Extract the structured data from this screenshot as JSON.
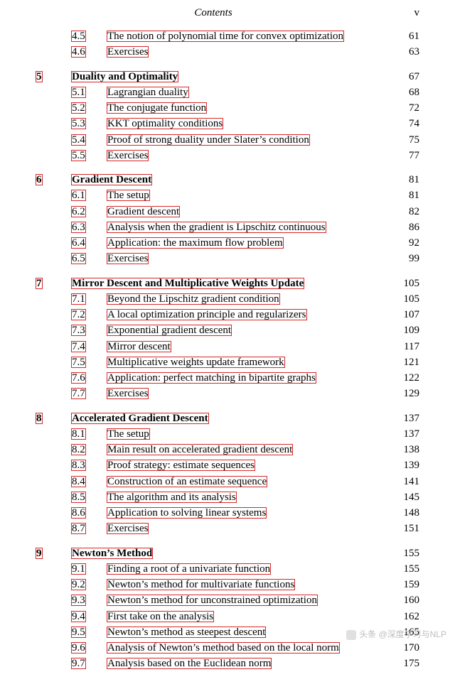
{
  "header": {
    "title": "Contents",
    "pageNumeral": "v"
  },
  "preChapterItems": [
    {
      "num": "4.5",
      "title": "The notion of polynomial time for convex optimization",
      "page": "61"
    },
    {
      "num": "4.6",
      "title": "Exercises",
      "page": "63"
    }
  ],
  "chapters": [
    {
      "num": "5",
      "title": "Duality and Optimality",
      "page": "67",
      "items": [
        {
          "num": "5.1",
          "title": "Lagrangian duality",
          "page": "68"
        },
        {
          "num": "5.2",
          "title": "The conjugate function",
          "page": "72"
        },
        {
          "num": "5.3",
          "title": "KKT optimality conditions",
          "page": "74"
        },
        {
          "num": "5.4",
          "title": "Proof of strong duality under Slater’s condition",
          "page": "75"
        },
        {
          "num": "5.5",
          "title": "Exercises",
          "page": "77"
        }
      ]
    },
    {
      "num": "6",
      "title": "Gradient Descent",
      "page": "81",
      "items": [
        {
          "num": "6.1",
          "title": "The setup",
          "page": "81"
        },
        {
          "num": "6.2",
          "title": "Gradient descent",
          "page": "82"
        },
        {
          "num": "6.3",
          "title": "Analysis when the gradient is Lipschitz continuous",
          "page": "86"
        },
        {
          "num": "6.4",
          "title": "Application: the maximum flow problem",
          "page": "92"
        },
        {
          "num": "6.5",
          "title": "Exercises",
          "page": "99"
        }
      ]
    },
    {
      "num": "7",
      "title": "Mirror Descent and Multiplicative Weights Update",
      "page": "105",
      "items": [
        {
          "num": "7.1",
          "title": "Beyond the Lipschitz gradient condition",
          "page": "105"
        },
        {
          "num": "7.2",
          "title": "A local optimization principle and regularizers",
          "page": "107"
        },
        {
          "num": "7.3",
          "title": "Exponential gradient descent",
          "page": "109"
        },
        {
          "num": "7.4",
          "title": "Mirror descent",
          "page": "117"
        },
        {
          "num": "7.5",
          "title": "Multiplicative weights update framework",
          "page": "121"
        },
        {
          "num": "7.6",
          "title": "Application: perfect matching in bipartite graphs",
          "page": "122"
        },
        {
          "num": "7.7",
          "title": "Exercises",
          "page": "129"
        }
      ]
    },
    {
      "num": "8",
      "title": "Accelerated Gradient Descent",
      "page": "137",
      "items": [
        {
          "num": "8.1",
          "title": "The setup",
          "page": "137"
        },
        {
          "num": "8.2",
          "title": "Main result on accelerated gradient descent",
          "page": "138"
        },
        {
          "num": "8.3",
          "title": "Proof strategy: estimate sequences",
          "page": "139"
        },
        {
          "num": "8.4",
          "title": "Construction of an estimate sequence",
          "page": "141"
        },
        {
          "num": "8.5",
          "title": "The algorithm and its analysis",
          "page": "145"
        },
        {
          "num": "8.6",
          "title": "Application to solving linear systems",
          "page": "148"
        },
        {
          "num": "8.7",
          "title": "Exercises",
          "page": "151"
        }
      ]
    },
    {
      "num": "9",
      "title": "Newton’s Method",
      "page": "155",
      "items": [
        {
          "num": "9.1",
          "title": "Finding a root of a univariate function",
          "page": "155"
        },
        {
          "num": "9.2",
          "title": "Newton’s method for multivariate functions",
          "page": "159"
        },
        {
          "num": "9.3",
          "title": "Newton’s method for unconstrained optimization",
          "page": "160"
        },
        {
          "num": "9.4",
          "title": "First take on the analysis",
          "page": "162"
        },
        {
          "num": "9.5",
          "title": "Newton’s method as steepest descent",
          "page": "165"
        },
        {
          "num": "9.6",
          "title": "Analysis of Newton’s method based on the local norm",
          "page": "170"
        },
        {
          "num": "9.7",
          "title": "Analysis based on the Euclidean norm",
          "page": "175"
        }
      ]
    }
  ],
  "watermark": "头条 @深度学习与NLP",
  "colors": {
    "linkOutline": "#d62728",
    "text": "#000000",
    "background": "#ffffff"
  }
}
